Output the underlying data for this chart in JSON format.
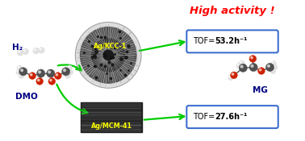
{
  "bg_color": "#ffffff",
  "title_text": "High activity !",
  "title_color": "#ff0000",
  "title_fontsize": 9.5,
  "tof1_label": "TOF= ",
  "tof1_val": "53.2h⁻¹",
  "tof2_label": "TOF= ",
  "tof2_val": "27.6h⁻¹",
  "label_kcc1": "Ag/KCC-1",
  "label_mcm41": "Ag/MCM-41",
  "label_dmo": "DMO",
  "label_h2": "H₂",
  "label_mg": "MG",
  "arrow_color": "#00cc00",
  "tof_box_edgecolor": "#3366cc",
  "kcc1_label_color": "#ffff00",
  "mcm41_label_color": "#ffff00",
  "atom_gray": "#707070",
  "atom_darkgray": "#505050",
  "atom_red": "#cc2200",
  "atom_white": "#e0e0e0",
  "dmo_label_color": "#000080",
  "mg_label_color": "#000080",
  "h2_label_color": "#000080"
}
